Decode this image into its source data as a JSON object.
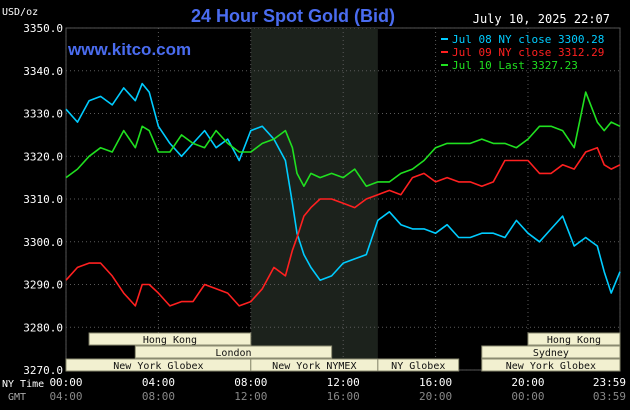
{
  "chart_data": {
    "type": "line",
    "title": "24 Hour Spot Gold (Bid)",
    "website": "www.kitco.com",
    "ylabel": "USD/oz",
    "timestamp": "July 10, 2025 22:07",
    "ylim": [
      3270.0,
      3350.0
    ],
    "y_ticks": [
      "3270.0",
      "3280.0",
      "3290.0",
      "3300.0",
      "3310.0",
      "3320.0",
      "3330.0",
      "3340.0",
      "3350.0"
    ],
    "x_row_labels": {
      "ny": "NY Time",
      "gmt": "GMT"
    },
    "x_ticks_ny": [
      "00:00",
      "04:00",
      "08:00",
      "12:00",
      "16:00",
      "20:00",
      "23:59"
    ],
    "x_ticks_gmt": [
      "04:00",
      "08:00",
      "12:00",
      "16:00",
      "20:00",
      "00:00",
      "03:59"
    ],
    "x_hours": [
      0,
      4,
      8,
      12,
      16,
      20,
      23.983
    ],
    "shaded_session": [
      8.0,
      13.5
    ],
    "legend": [
      {
        "label": "Jul 08 NY close 3300.28",
        "color": "#00ccff"
      },
      {
        "label": "Jul 09 NY close 3312.29",
        "color": "#ff2020"
      },
      {
        "label": "Jul 10 Last 3327.23",
        "color": "#20e020"
      }
    ],
    "series": [
      {
        "name": "Jul 08",
        "color": "#00ccff",
        "x": [
          0,
          0.5,
          1,
          1.5,
          2,
          2.5,
          3,
          3.3,
          3.6,
          4,
          4.5,
          5,
          5.5,
          6,
          6.5,
          7,
          7.5,
          8,
          8.5,
          9,
          9.5,
          9.8,
          10,
          10.3,
          10.6,
          11,
          11.5,
          12,
          12.5,
          13,
          13.5,
          14,
          14.5,
          15,
          15.5,
          16,
          16.5,
          17,
          17.5,
          18,
          18.5,
          19,
          19.5,
          20,
          20.5,
          21,
          21.5,
          22,
          22.5,
          23,
          23.3,
          23.6,
          23.983
        ],
        "y": [
          3331,
          3328,
          3333,
          3334,
          3332,
          3336,
          3333,
          3337,
          3335,
          3327,
          3323,
          3320,
          3323,
          3326,
          3322,
          3324,
          3319,
          3326,
          3327,
          3324,
          3319,
          3309,
          3302,
          3297,
          3294,
          3291,
          3292,
          3295,
          3296,
          3297,
          3305,
          3307,
          3304,
          3303,
          3303,
          3302,
          3304,
          3301,
          3301,
          3302,
          3302,
          3301,
          3305,
          3302,
          3300,
          3303,
          3306,
          3299,
          3301,
          3299,
          3293,
          3288,
          3293
        ]
      },
      {
        "name": "Jul 09",
        "color": "#ff2020",
        "x": [
          0,
          0.5,
          1,
          1.5,
          2,
          2.5,
          3,
          3.3,
          3.6,
          4,
          4.5,
          5,
          5.5,
          6,
          6.5,
          7,
          7.5,
          8,
          8.5,
          9,
          9.5,
          9.8,
          10,
          10.3,
          10.6,
          11,
          11.5,
          12,
          12.5,
          13,
          13.5,
          14,
          14.5,
          15,
          15.5,
          16,
          16.5,
          17,
          17.5,
          18,
          18.5,
          19,
          19.5,
          20,
          20.5,
          21,
          21.5,
          22,
          22.5,
          23,
          23.3,
          23.6,
          23.983
        ],
        "y": [
          3291,
          3294,
          3295,
          3295,
          3292,
          3288,
          3285,
          3290,
          3290,
          3288,
          3285,
          3286,
          3286,
          3290,
          3289,
          3288,
          3285,
          3286,
          3289,
          3294,
          3292,
          3298,
          3301,
          3306,
          3308,
          3310,
          3310,
          3309,
          3308,
          3310,
          3311,
          3312,
          3311,
          3315,
          3316,
          3314,
          3315,
          3314,
          3314,
          3313,
          3314,
          3319,
          3319,
          3319,
          3316,
          3316,
          3318,
          3317,
          3321,
          3322,
          3318,
          3317,
          3318
        ]
      },
      {
        "name": "Jul 10",
        "color": "#20e020",
        "x": [
          0,
          0.5,
          1,
          1.5,
          2,
          2.5,
          3,
          3.3,
          3.6,
          4,
          4.5,
          5,
          5.5,
          6,
          6.5,
          7,
          7.5,
          8,
          8.5,
          9,
          9.5,
          9.8,
          10,
          10.3,
          10.6,
          11,
          11.5,
          12,
          12.5,
          13,
          13.5,
          14,
          14.5,
          15,
          15.5,
          16,
          16.5,
          17,
          17.5,
          18,
          18.5,
          19,
          19.5,
          20,
          20.5,
          21,
          21.5,
          22,
          22.5,
          23,
          23.3,
          23.6,
          23.983
        ],
        "y": [
          3315,
          3317,
          3320,
          3322,
          3321,
          3326,
          3322,
          3327,
          3326,
          3321,
          3321,
          3325,
          3323,
          3322,
          3326,
          3323,
          3321,
          3321,
          3323,
          3324,
          3326,
          3322,
          3316,
          3313,
          3316,
          3315,
          3316,
          3315,
          3317,
          3313,
          3314,
          3314,
          3316,
          3317,
          3319,
          3322,
          3323,
          3323,
          3323,
          3324,
          3323,
          3323,
          3322,
          3324,
          3327,
          3327,
          3326,
          3322,
          3335,
          3328,
          3326,
          3328,
          3327
        ]
      }
    ],
    "sessions": [
      {
        "label": "Hong Kong",
        "row": 0,
        "start": 1.0,
        "end": 8.0
      },
      {
        "label": "London",
        "row": 1,
        "start": 3.0,
        "end": 11.5
      },
      {
        "label": "New York Globex",
        "row": 2,
        "start": 0,
        "end": 8.0
      },
      {
        "label": "New York NYMEX",
        "row": 2,
        "start": 8.0,
        "end": 13.5
      },
      {
        "label": "NY Globex",
        "row": 2,
        "start": 13.5,
        "end": 17.0
      },
      {
        "label": "Hong Kong",
        "row": 0,
        "start": 20.0,
        "end": 23.983
      },
      {
        "label": "Sydney",
        "row": 1,
        "start": 18.0,
        "end": 23.983
      },
      {
        "label": "New York Globex",
        "row": 2,
        "start": 18.0,
        "end": 23.983
      }
    ]
  }
}
